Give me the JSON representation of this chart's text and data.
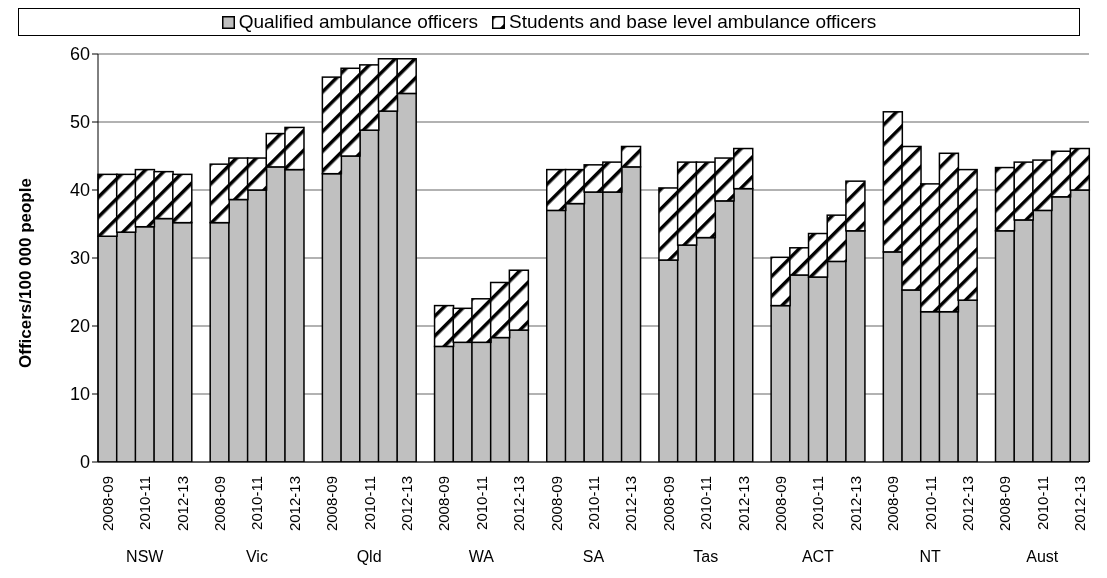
{
  "chart_data": {
    "type": "bar",
    "stacked": true,
    "ylabel": "Officers/100 000 people",
    "categories": [
      "2008-09",
      null,
      "2010-11",
      null,
      "2012-13",
      null,
      "2008-09",
      null,
      "2010-11",
      null,
      "2012-13",
      null,
      "2008-09",
      null,
      "2010-11",
      null,
      "2012-13",
      null,
      "2008-09",
      null,
      "2010-11",
      null,
      "2012-13",
      null,
      "2008-09",
      null,
      "2010-11",
      null,
      "2012-13",
      null,
      "2008-09",
      null,
      "2010-11",
      null,
      "2012-13",
      null,
      "2008-09",
      null,
      "2010-11",
      null,
      "2012-13",
      null,
      "2008-09",
      null,
      "2010-11",
      null,
      "2012-13",
      null,
      "2008-09",
      null,
      "2010-11",
      null,
      "2012-13"
    ],
    "series": [
      {
        "name": "Qualified ambulance officers",
        "color": "#c0c0c0",
        "values": [
          33.2,
          33.8,
          34.6,
          35.8,
          35.2,
          null,
          35.2,
          38.6,
          40,
          43.4,
          43,
          null,
          42.4,
          45,
          48.8,
          51.6,
          54.2,
          null,
          17,
          17.6,
          17.6,
          18.3,
          19.4,
          null,
          37,
          38,
          39.7,
          39.7,
          43.4,
          null,
          29.7,
          31.9,
          33,
          38.4,
          40.2,
          null,
          23,
          27.5,
          27.2,
          29.5,
          34,
          null,
          30.9,
          25.3,
          22.1,
          22.1,
          23.8,
          null,
          34,
          35.6,
          37,
          39,
          40
        ]
      },
      {
        "name": "Students and base level ambulance officers",
        "color": "#ffffff",
        "values": [
          9.1,
          8.5,
          8.4,
          6.9,
          7.1,
          null,
          8.6,
          6.1,
          4.7,
          4.9,
          6.2,
          null,
          14.2,
          12.9,
          9.6,
          7.7,
          5.1,
          null,
          6,
          5,
          6.4,
          8.1,
          8.8,
          null,
          6,
          5,
          4,
          4.4,
          3,
          null,
          10.6,
          12.2,
          11.1,
          6.3,
          5.9,
          null,
          7.1,
          4,
          6.4,
          6.8,
          7.3,
          null,
          20.6,
          21.1,
          18.8,
          23.3,
          19.2,
          null,
          9.3,
          8.5,
          7.4,
          6.7,
          6.1
        ]
      }
    ],
    "annotations": [
      "NSW",
      "Vic",
      "Qld",
      "WA",
      "SA",
      "Tas",
      "ACT",
      "NT",
      "Aust"
    ],
    "ylim": [
      0,
      60
    ],
    "yticks": [
      0,
      10,
      20,
      30,
      40,
      50,
      60
    ],
    "grid": "y",
    "legend": "top"
  }
}
